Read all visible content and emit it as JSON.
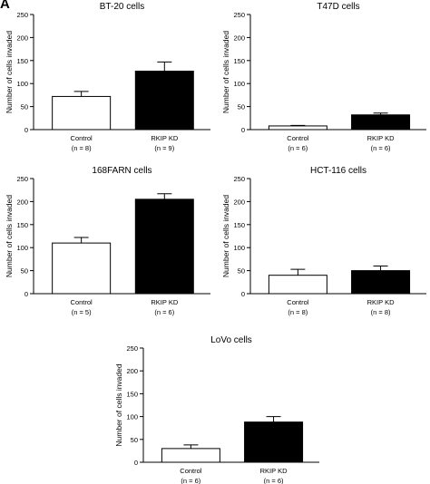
{
  "panel_label": "A",
  "chart_data": [
    {
      "type": "bar",
      "title": "BT-20 cells",
      "ylabel": "Number of cells invaded",
      "ylim": [
        0,
        250
      ],
      "yticks": [
        0,
        50,
        100,
        150,
        200,
        250
      ],
      "categories": [
        "Control",
        "RKIP KD"
      ],
      "n_labels": [
        "(n = 8)",
        "(n = 9)"
      ],
      "values": [
        72,
        127
      ],
      "errors": [
        11,
        20
      ],
      "bar_colors": [
        "#ffffff",
        "#000000"
      ]
    },
    {
      "type": "bar",
      "title": "T47D cells",
      "ylabel": "Number of cells invaded",
      "ylim": [
        0,
        250
      ],
      "yticks": [
        0,
        50,
        100,
        150,
        200,
        250
      ],
      "categories": [
        "Control",
        "RKIP KD"
      ],
      "n_labels": [
        "(n = 6)",
        "(n = 6)"
      ],
      "values": [
        8,
        32
      ],
      "errors": [
        1,
        4
      ],
      "bar_colors": [
        "#ffffff",
        "#000000"
      ]
    },
    {
      "type": "bar",
      "title": "168FARN cells",
      "ylabel": "Number of cells invaded",
      "ylim": [
        0,
        250
      ],
      "yticks": [
        0,
        50,
        100,
        150,
        200,
        250
      ],
      "categories": [
        "Control",
        "RKIP KD"
      ],
      "n_labels": [
        "(n = 5)",
        "(n = 6)"
      ],
      "values": [
        110,
        205
      ],
      "errors": [
        12,
        12
      ],
      "bar_colors": [
        "#ffffff",
        "#000000"
      ]
    },
    {
      "type": "bar",
      "title": "HCT-116 cells",
      "ylabel": "Number of cells invaded",
      "ylim": [
        0,
        250
      ],
      "yticks": [
        0,
        50,
        100,
        150,
        200,
        250
      ],
      "categories": [
        "Control",
        "RKIP KD"
      ],
      "n_labels": [
        "(n = 8)",
        "(n = 8)"
      ],
      "values": [
        40,
        50
      ],
      "errors": [
        13,
        10
      ],
      "bar_colors": [
        "#ffffff",
        "#000000"
      ]
    },
    {
      "type": "bar",
      "title": "LoVo cells",
      "ylabel": "Number of cells invaded",
      "ylim": [
        0,
        250
      ],
      "yticks": [
        0,
        50,
        100,
        150,
        200,
        250
      ],
      "categories": [
        "Control",
        "RKIP KD"
      ],
      "n_labels": [
        "(n = 6)",
        "(n = 6)"
      ],
      "values": [
        30,
        88
      ],
      "errors": [
        8,
        12
      ],
      "bar_colors": [
        "#ffffff",
        "#000000"
      ]
    }
  ]
}
